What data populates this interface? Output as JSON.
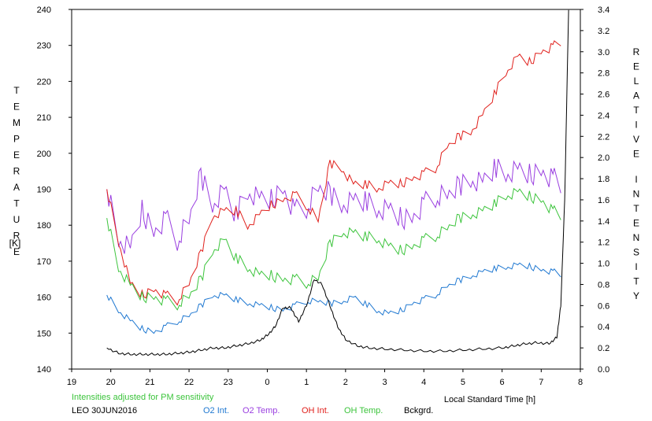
{
  "chart_data": {
    "type": "line",
    "title": "",
    "xlabel": "Local Standard Time [h]",
    "ylabel_left": "TEMPERATURE",
    "ylabel_left_unit": "[K]",
    "ylabel_right": "RELATIVE INTENSITY",
    "x_tick_labels": [
      "19",
      "20",
      "21",
      "22",
      "23",
      "0",
      "1",
      "2",
      "3",
      "4",
      "5",
      "6",
      "7",
      "8"
    ],
    "x_range_hours": [
      19,
      32
    ],
    "ylim_left": [
      140,
      240
    ],
    "ylim_right": [
      0.0,
      3.4
    ],
    "y_left_ticks": [
      140,
      150,
      160,
      170,
      180,
      190,
      200,
      210,
      220,
      230,
      240
    ],
    "y_right_ticks": [
      "0.0",
      "0.2",
      "0.4",
      "0.6",
      "0.8",
      "1.0",
      "1.2",
      "1.4",
      "1.6",
      "1.8",
      "2.0",
      "2.2",
      "2.4",
      "2.6",
      "2.8",
      "3.0",
      "3.2",
      "3.4"
    ],
    "note": "Intensities adjusted for PM sensitivity",
    "station_date": "LEO 30JUN2016",
    "grid": false,
    "legend_position": "bottom",
    "series": [
      {
        "name": "O2 Int.",
        "axis": "right",
        "color": "#1f78d1",
        "x": [
          19.9,
          20.2,
          20.5,
          20.8,
          21.1,
          21.4,
          21.7,
          22.0,
          22.3,
          22.6,
          22.9,
          23.2,
          23.5,
          23.8,
          24.1,
          24.4,
          24.7,
          25.0,
          25.3,
          25.6,
          25.9,
          26.2,
          26.5,
          26.8,
          27.1,
          27.4,
          27.7,
          28.0,
          28.3,
          28.6,
          28.9,
          29.2,
          29.5,
          29.8,
          30.1,
          30.4,
          30.7,
          31.0,
          31.3,
          31.5
        ],
        "y": [
          0.7,
          0.55,
          0.45,
          0.38,
          0.35,
          0.4,
          0.45,
          0.5,
          0.6,
          0.7,
          0.7,
          0.66,
          0.62,
          0.6,
          0.58,
          0.56,
          0.6,
          0.64,
          0.64,
          0.62,
          0.64,
          0.68,
          0.62,
          0.55,
          0.52,
          0.55,
          0.62,
          0.66,
          0.7,
          0.78,
          0.84,
          0.88,
          0.92,
          0.95,
          0.96,
          0.98,
          0.97,
          0.94,
          0.92,
          0.9
        ]
      },
      {
        "name": "O2 Temp.",
        "axis": "left",
        "color": "#9a3fe0",
        "x": [
          19.9,
          20.2,
          20.5,
          20.8,
          21.1,
          21.4,
          21.7,
          22.0,
          22.3,
          22.6,
          22.9,
          23.2,
          23.5,
          23.8,
          24.1,
          24.4,
          24.7,
          25.0,
          25.3,
          25.6,
          25.9,
          26.2,
          26.5,
          26.8,
          27.1,
          27.4,
          27.7,
          28.0,
          28.3,
          28.6,
          28.9,
          29.2,
          29.5,
          29.8,
          30.1,
          30.4,
          30.7,
          31.0,
          31.3,
          31.5
        ],
        "y": [
          190,
          176,
          173,
          184,
          178,
          182,
          176,
          181,
          194,
          186,
          190,
          183,
          189,
          187,
          187,
          190,
          184,
          185,
          190,
          189,
          186,
          187,
          187,
          184,
          184,
          182,
          182,
          186,
          188,
          188,
          191,
          193,
          192,
          196,
          194,
          195,
          194,
          195,
          193,
          192
        ]
      },
      {
        "name": "OH Int.",
        "axis": "right",
        "color": "#e0201c",
        "x": [
          19.9,
          20.2,
          20.5,
          20.8,
          21.1,
          21.4,
          21.7,
          22.0,
          22.3,
          22.6,
          22.9,
          23.2,
          23.5,
          23.8,
          24.1,
          24.4,
          24.7,
          25.0,
          25.3,
          25.6,
          25.9,
          26.2,
          26.5,
          26.8,
          27.1,
          27.4,
          27.7,
          28.0,
          28.3,
          28.6,
          28.9,
          29.2,
          29.5,
          29.8,
          30.1,
          30.4,
          30.7,
          31.0,
          31.3,
          31.5
        ],
        "y": [
          1.7,
          1.2,
          0.8,
          0.7,
          0.75,
          0.7,
          0.65,
          0.8,
          1.1,
          1.45,
          1.5,
          1.5,
          1.35,
          1.45,
          1.55,
          1.6,
          1.65,
          1.55,
          1.4,
          1.95,
          1.9,
          1.75,
          1.75,
          1.7,
          1.75,
          1.75,
          1.8,
          1.85,
          1.9,
          2.1,
          2.2,
          2.25,
          2.4,
          2.6,
          2.8,
          2.95,
          2.9,
          3.0,
          3.05,
          3.1
        ]
      },
      {
        "name": "OH Temp.",
        "axis": "left",
        "color": "#3cc43c",
        "x": [
          19.9,
          20.2,
          20.5,
          20.8,
          21.1,
          21.4,
          21.7,
          22.0,
          22.3,
          22.6,
          22.9,
          23.2,
          23.5,
          23.8,
          24.1,
          24.4,
          24.7,
          25.0,
          25.3,
          25.6,
          25.9,
          26.2,
          26.5,
          26.8,
          27.1,
          27.4,
          27.7,
          28.0,
          28.3,
          28.6,
          28.9,
          29.2,
          29.5,
          29.8,
          30.1,
          30.4,
          30.7,
          31.0,
          31.3,
          31.5
        ],
        "y": [
          182,
          168,
          163,
          160,
          160,
          159,
          158,
          160,
          165,
          173,
          176,
          171,
          168,
          166,
          166,
          165,
          165,
          164,
          165,
          175,
          178,
          178,
          177,
          176,
          174,
          173,
          174,
          176,
          177,
          179,
          182,
          183,
          184,
          186,
          188,
          189,
          188,
          187,
          184,
          183
        ]
      },
      {
        "name": "Bckgrd.",
        "axis": "right",
        "color": "#000000",
        "x": [
          19.9,
          20.2,
          20.5,
          20.8,
          21.1,
          21.4,
          21.7,
          22.0,
          22.3,
          22.6,
          22.9,
          23.2,
          23.5,
          23.8,
          24.0,
          24.2,
          24.4,
          24.6,
          24.8,
          25.0,
          25.2,
          25.4,
          25.6,
          25.8,
          26.0,
          26.3,
          26.6,
          27.0,
          27.5,
          28.0,
          28.5,
          29.0,
          29.5,
          30.0,
          30.3,
          30.6,
          30.9,
          31.2,
          31.4,
          31.5,
          31.6,
          31.7
        ],
        "y": [
          0.2,
          0.15,
          0.14,
          0.14,
          0.14,
          0.14,
          0.15,
          0.16,
          0.18,
          0.2,
          0.2,
          0.22,
          0.24,
          0.27,
          0.32,
          0.4,
          0.58,
          0.58,
          0.45,
          0.6,
          0.85,
          0.8,
          0.6,
          0.4,
          0.28,
          0.22,
          0.2,
          0.19,
          0.18,
          0.17,
          0.17,
          0.18,
          0.19,
          0.2,
          0.22,
          0.24,
          0.25,
          0.24,
          0.3,
          0.6,
          1.6,
          3.4
        ]
      }
    ]
  }
}
